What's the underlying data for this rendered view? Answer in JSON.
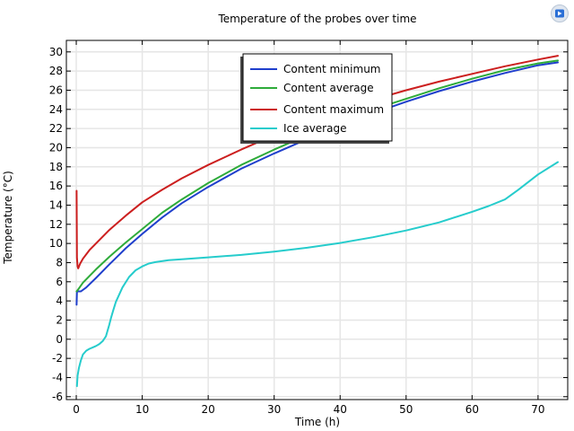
{
  "chart_data": {
    "type": "line",
    "title": "Temperature of the probes over time",
    "xlabel": "Time (h)",
    "ylabel": "Temperature (°C)",
    "xlim": [
      -1.5,
      74.5
    ],
    "ylim": [
      -6.3,
      31.2
    ],
    "xticks": [
      0,
      10,
      20,
      30,
      40,
      50,
      60,
      70
    ],
    "yticks": [
      -6,
      -4,
      -2,
      0,
      2,
      4,
      6,
      8,
      10,
      12,
      14,
      16,
      18,
      20,
      22,
      24,
      26,
      28,
      30
    ],
    "grid": true,
    "legend_position": "top-center",
    "series": [
      {
        "name": "Content minimum",
        "color": "#1f3fcc",
        "x": [
          0.05,
          0.1,
          0.3,
          0.7,
          1.5,
          3,
          5,
          7.5,
          10,
          13,
          16,
          20,
          25,
          30,
          35,
          40,
          45,
          50,
          55,
          60,
          65,
          70,
          73
        ],
        "y": [
          3.6,
          5.0,
          5.0,
          5.0,
          5.4,
          6.4,
          7.8,
          9.5,
          11.0,
          12.7,
          14.2,
          15.9,
          17.8,
          19.4,
          20.9,
          22.3,
          23.6,
          24.8,
          25.9,
          26.9,
          27.8,
          28.6,
          28.9
        ]
      },
      {
        "name": "Content average",
        "color": "#2eab3a",
        "x": [
          0.05,
          0.3,
          1,
          2,
          3,
          5,
          7.5,
          10,
          13,
          16,
          20,
          25,
          30,
          35,
          40,
          45,
          50,
          55,
          60,
          65,
          70,
          73
        ],
        "y": [
          5.0,
          5.2,
          5.9,
          6.6,
          7.3,
          8.6,
          10.1,
          11.5,
          13.2,
          14.6,
          16.3,
          18.2,
          19.8,
          21.3,
          22.7,
          24.0,
          25.1,
          26.2,
          27.2,
          28.1,
          28.8,
          29.1
        ]
      },
      {
        "name": "Content maximum",
        "color": "#cc1f1f",
        "x": [
          0.05,
          0.1,
          0.2,
          0.3,
          0.6,
          1,
          2,
          3,
          5,
          7.5,
          10,
          13,
          16,
          20,
          25,
          30,
          35,
          40,
          45,
          50,
          55,
          60,
          65,
          70,
          73
        ],
        "y": [
          15.5,
          8.5,
          7.6,
          7.4,
          7.9,
          8.4,
          9.3,
          10.0,
          11.4,
          12.9,
          14.3,
          15.6,
          16.8,
          18.2,
          19.8,
          21.3,
          22.6,
          23.9,
          25.0,
          26.0,
          26.9,
          27.7,
          28.5,
          29.2,
          29.6
        ]
      },
      {
        "name": "Ice average",
        "color": "#26cccc",
        "x": [
          0.1,
          0.2,
          0.4,
          0.7,
          1,
          1.5,
          2,
          2.5,
          3,
          3.5,
          4,
          4.5,
          5,
          5.3,
          5.6,
          6,
          7,
          8,
          9,
          10,
          11,
          12,
          14,
          16,
          20,
          25,
          30,
          35,
          40,
          45,
          50,
          55,
          60,
          62.5,
          65,
          67,
          70,
          73
        ],
        "y": [
          -4.9,
          -3.8,
          -3.0,
          -2.2,
          -1.6,
          -1.2,
          -1.0,
          -0.85,
          -0.7,
          -0.5,
          -0.2,
          0.3,
          1.5,
          2.3,
          3.0,
          3.9,
          5.4,
          6.5,
          7.2,
          7.6,
          7.9,
          8.05,
          8.25,
          8.35,
          8.55,
          8.8,
          9.15,
          9.55,
          10.05,
          10.65,
          11.35,
          12.2,
          13.3,
          13.9,
          14.6,
          15.6,
          17.2,
          18.5
        ]
      }
    ]
  },
  "logo": {
    "name": "comsol-logo-icon",
    "color": "#2a6fd6"
  }
}
